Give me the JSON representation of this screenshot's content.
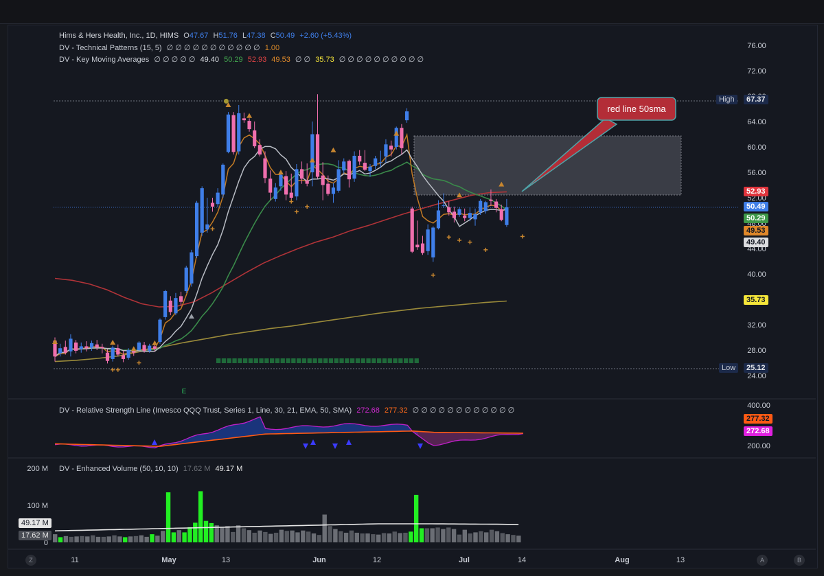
{
  "main_legend": {
    "symbol": "Hims & Hers Health, Inc., 1D, HIMS",
    "open_label": "O",
    "open": "47.67",
    "high_label": "H",
    "high": "51.76",
    "low_label": "L",
    "low": "47.38",
    "close_label": "C",
    "close": "50.49",
    "change": "+2.60 (+5.43%)"
  },
  "indicator_legends": {
    "patterns_name": "DV - Technical Patterns (15, 5)",
    "patterns_values": "∅ ∅ ∅ ∅ ∅ ∅ ∅ ∅ ∅ ∅ ∅",
    "patterns_last": "1.00",
    "kma_name": "DV - Key Moving Averages",
    "kma_prefix": "∅ ∅ ∅ ∅ ∅",
    "kma_v1": "49.40",
    "kma_v2": "50.29",
    "kma_v3": "52.93",
    "kma_v4": "49.53",
    "kma_mid": "∅ ∅",
    "kma_v5": "35.73",
    "kma_suffix": "∅ ∅ ∅ ∅ ∅ ∅ ∅ ∅ ∅ ∅",
    "rs_name": "DV - Relative Strength Line (Invesco QQQ Trust, Series 1, Line, 30, 21, EMA, 50, SMA)",
    "rs_v1": "272.68",
    "rs_v2": "277.32",
    "rs_suffix": "∅ ∅ ∅ ∅ ∅ ∅ ∅ ∅ ∅ ∅ ∅ ∅",
    "vol_name": "DV - Enhanced Volume (50, 10, 10)",
    "vol_v1": "17.62 M",
    "vol_v2": "49.17 M"
  },
  "price_axis": {
    "ticks": [
      "76.00",
      "72.00",
      "68.00",
      "64.00",
      "60.00",
      "56.00",
      "52.00",
      "48.00",
      "44.00",
      "40.00",
      "36.00",
      "32.00",
      "28.00",
      "24.00"
    ]
  },
  "price_tags": {
    "high_label": "High",
    "high_value": "67.37",
    "low_label": "Low",
    "low_value": "25.12",
    "sma50": "52.93",
    "last": "50.49",
    "ma2": "50.29",
    "ma3": "49.53",
    "ma4": "49.40",
    "ma200": "35.73"
  },
  "rs_axis": {
    "ticks": [
      "400.00",
      "200.00"
    ],
    "tag1": "277.32",
    "tag2": "272.68"
  },
  "vol_axis": {
    "ticks": [
      "200 M",
      "100 M",
      "0"
    ],
    "tag1": "49.17 M",
    "tag2": "17.62 M"
  },
  "time_axis": {
    "labels": [
      "11",
      "May",
      "13",
      "Jun",
      "12",
      "Jul",
      "14",
      "Aug",
      "13"
    ]
  },
  "annotation": {
    "text": "red line 50sma"
  },
  "earnings_marker": "E",
  "corner_buttons": {
    "left": "Z",
    "right1": "A",
    "right2": "B"
  },
  "colors": {
    "up": "#3f7ee8",
    "down": "#f06fae",
    "sma50": "#c8353a",
    "ma_green": "#3a8a4a",
    "ma_orange": "#d98a2a",
    "ma_grey": "#c0c4cc",
    "sma200": "#9a8a3a",
    "rs_orange": "#ff6a1a",
    "rs_magenta": "#e020e0",
    "vol_green": "#22ee22",
    "vol_grey": "#6b6e75"
  },
  "chart_data": {
    "type": "candlestick",
    "title": "Hims & Hers Health, Inc., 1D, HIMS",
    "ylim": [
      24,
      78
    ],
    "marked_high": 67.37,
    "marked_low": 25.12,
    "x_axis_labels": [
      "11",
      "May",
      "13",
      "Jun",
      "12",
      "Jul",
      "14",
      "Aug",
      "13"
    ],
    "candles_ohlc": [
      [
        29.5,
        30,
        26.2,
        27
      ],
      [
        27.5,
        29,
        27,
        28.3
      ],
      [
        28.5,
        29.5,
        27.3,
        27.6
      ],
      [
        27.8,
        30.5,
        27,
        29.8
      ],
      [
        29.2,
        29.6,
        27.5,
        27.9
      ],
      [
        28.2,
        29.2,
        27.6,
        28.6
      ],
      [
        28.6,
        29.4,
        27.8,
        28.3
      ],
      [
        28.4,
        29.5,
        27.9,
        29.1
      ],
      [
        28.9,
        29.6,
        28,
        28.4
      ],
      [
        28.5,
        29,
        27.5,
        28.3
      ],
      [
        27.6,
        28.2,
        25.9,
        26.3
      ],
      [
        26.6,
        28.7,
        26.2,
        28.4
      ],
      [
        28.3,
        28.9,
        27,
        27.3
      ],
      [
        27.2,
        27.9,
        26.1,
        26.6
      ],
      [
        26.8,
        28.3,
        26.5,
        28
      ],
      [
        27.8,
        28.4,
        27.1,
        27.6
      ],
      [
        28,
        29.4,
        27.8,
        29.2
      ],
      [
        28.8,
        29.3,
        27.6,
        27.9
      ],
      [
        27.9,
        29,
        27.6,
        28.7
      ],
      [
        28.6,
        29,
        27.8,
        28.2
      ],
      [
        29.3,
        33,
        29,
        32.8
      ],
      [
        33.2,
        37.5,
        32.8,
        37.3
      ],
      [
        35.8,
        36.5,
        33.5,
        34
      ],
      [
        33.8,
        37,
        33.5,
        36.2
      ],
      [
        36.5,
        37.2,
        35,
        35.6
      ],
      [
        37.3,
        41.3,
        37,
        41
      ],
      [
        38.5,
        43.8,
        38,
        43.4
      ],
      [
        42.8,
        51.5,
        42.5,
        51.2
      ],
      [
        46.5,
        53.8,
        46,
        53.5
      ],
      [
        47,
        52,
        46.5,
        47.8
      ],
      [
        51.2,
        52,
        49.8,
        50.6
      ],
      [
        51,
        53.5,
        50.5,
        52.8
      ],
      [
        52.5,
        57.4,
        52,
        57.2
      ],
      [
        59.2,
        65.5,
        59,
        65.1
      ],
      [
        65,
        65.5,
        58.8,
        59.2
      ],
      [
        59.3,
        66.6,
        58.8,
        65.3
      ],
      [
        64.5,
        65.4,
        63.8,
        64.2
      ],
      [
        64.1,
        64.5,
        62.4,
        62.8
      ],
      [
        62.6,
        64,
        59.8,
        60.1
      ],
      [
        60.3,
        61.2,
        58.5,
        58.8
      ],
      [
        58.2,
        59.3,
        54.3,
        55.1
      ],
      [
        55,
        56.3,
        51.6,
        52.8
      ],
      [
        51.8,
        54.3,
        51.4,
        53.6
      ],
      [
        53.8,
        56,
        53.1,
        55.6
      ],
      [
        55.4,
        56.2,
        51.6,
        52.5
      ],
      [
        52.8,
        55.8,
        51.5,
        52
      ],
      [
        52.2,
        57.3,
        51.6,
        56.5
      ],
      [
        56.5,
        57.7,
        54.2,
        55
      ],
      [
        54.7,
        57.4,
        53.8,
        54.2
      ],
      [
        56,
        64,
        53.8,
        62
      ],
      [
        62,
        68.3,
        55,
        55.3
      ],
      [
        55.5,
        57.6,
        51.6,
        54
      ],
      [
        54.2,
        55.5,
        52.3,
        52.6
      ],
      [
        52.6,
        54.3,
        51.2,
        53.6
      ],
      [
        53.1,
        57.9,
        52.8,
        56.5
      ],
      [
        56.3,
        58.2,
        55.8,
        57.7
      ],
      [
        57.8,
        58,
        53.6,
        54.9
      ],
      [
        55,
        59.3,
        54.5,
        58.6
      ],
      [
        58.6,
        59.5,
        57.2,
        57.7
      ],
      [
        57.5,
        59.5,
        56.2,
        56.4
      ],
      [
        56.2,
        57.3,
        55.3,
        56.9
      ],
      [
        57,
        58.6,
        56.5,
        58.2
      ],
      [
        57.5,
        59.4,
        56.8,
        57.6
      ],
      [
        58.5,
        61.2,
        57.5,
        60.4
      ],
      [
        60.2,
        61,
        58.5,
        59.6
      ],
      [
        60,
        63.2,
        59.6,
        63
      ],
      [
        63,
        63.6,
        58.8,
        59.8
      ],
      [
        64.2,
        66.1,
        63.8,
        65.6
      ],
      [
        50.3,
        50.6,
        43.3,
        43.5
      ],
      [
        44.6,
        48.4,
        43.8,
        44.2
      ],
      [
        44.8,
        46,
        43,
        43.3
      ],
      [
        43.6,
        47.8,
        43,
        47
      ],
      [
        42.6,
        47.5,
        41.9,
        47.3
      ],
      [
        47.2,
        51.6,
        47,
        50
      ],
      [
        50.7,
        52.7,
        50.4,
        50.8
      ],
      [
        50.5,
        51.4,
        49.2,
        49.7
      ],
      [
        49.8,
        50.6,
        48.1,
        48.8
      ],
      [
        49.3,
        50.5,
        49,
        50.2
      ],
      [
        49.2,
        50.3,
        48.3,
        48.8
      ],
      [
        48.8,
        50.5,
        48.3,
        49.6
      ],
      [
        48.6,
        50.3,
        47.6,
        49.4
      ],
      [
        49.7,
        51.8,
        49.3,
        51.5
      ],
      [
        49.9,
        51.5,
        49.5,
        51.3
      ],
      [
        51.7,
        53.3,
        50.7,
        51.5
      ],
      [
        51.4,
        51.8,
        49.7,
        50.4
      ],
      [
        50.2,
        50.9,
        48.3,
        48.5
      ],
      [
        47.7,
        51.8,
        47.4,
        50.5
      ]
    ],
    "series": [
      {
        "name": "50 SMA",
        "last": 52.93,
        "values": [
          39.3,
          39,
          38.4,
          37.5,
          36.3,
          35.3,
          34.8,
          34.9,
          35.6,
          37,
          38.6,
          40.2,
          41.7,
          42.9,
          44,
          45,
          45.8,
          46.8,
          47.6,
          48.5,
          49.4,
          50.2,
          51,
          51.7,
          52.4,
          52.8,
          52.93
        ]
      },
      {
        "name": "200 SMA",
        "last": 35.73,
        "values": [
          26.2,
          26.4,
          26.7,
          27.1,
          27.8,
          28.5,
          29.2,
          29.8,
          30.4,
          30.9,
          31.4,
          31.8,
          32.3,
          32.8,
          33.3,
          33.8,
          34.2,
          34.6,
          34.9,
          35.2,
          35.5,
          35.73
        ]
      },
      {
        "name": "MA green",
        "last": 50.29
      },
      {
        "name": "MA orange",
        "last": 49.53
      },
      {
        "name": "MA grey",
        "last": 49.4
      }
    ],
    "rs_line": {
      "ylim": [
        200,
        400
      ],
      "last_fast": 272.68,
      "last_slow": 277.32
    },
    "volume": {
      "unit": "M",
      "ylim": [
        0,
        200
      ],
      "current": 17.62,
      "average": 49.17,
      "values": [
        22,
        14,
        17,
        15,
        16,
        17,
        16,
        19,
        15,
        15,
        16,
        19,
        16,
        14,
        16,
        17,
        19,
        15,
        22,
        18,
        31,
        135,
        27,
        33,
        27,
        41,
        53,
        138,
        58,
        52,
        46,
        40,
        44,
        28,
        46,
        38,
        33,
        26,
        32,
        28,
        23,
        26,
        34,
        31,
        32,
        27,
        32,
        29,
        24,
        20,
        75,
        44,
        36,
        30,
        26,
        32,
        26,
        24,
        24,
        22,
        21,
        25,
        24,
        29,
        25,
        26,
        29,
        128,
        38,
        38,
        38,
        40,
        36,
        40,
        36,
        21,
        34,
        24,
        27,
        30,
        27,
        34,
        30,
        25,
        22,
        20,
        18
      ]
    }
  }
}
